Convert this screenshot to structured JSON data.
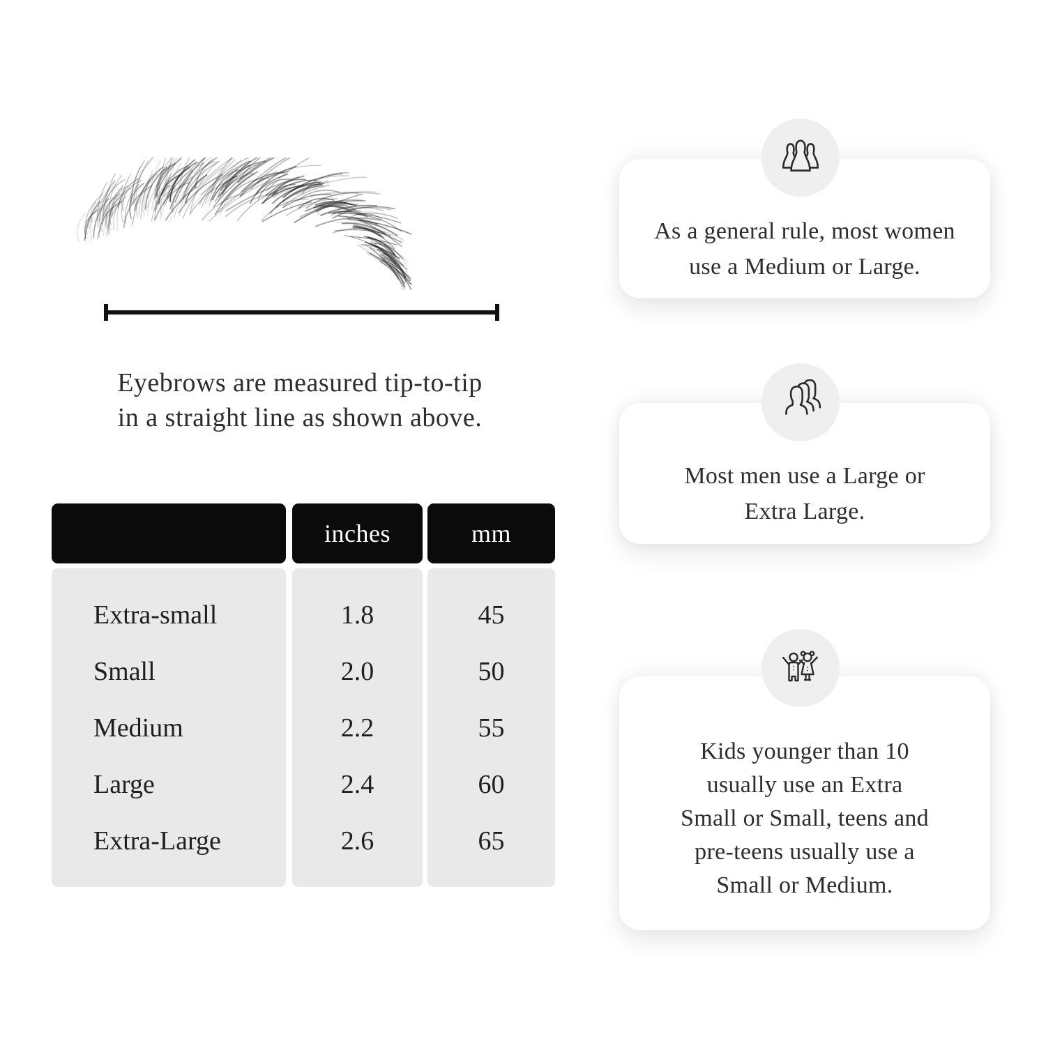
{
  "measure_section": {
    "illustration": "eyebrow-sketch",
    "caption_lines": [
      "Eyebrows are measured tip-to-tip",
      "in a straight line as shown above."
    ]
  },
  "size_table": {
    "headers": [
      "",
      "inches",
      "mm"
    ],
    "rows": [
      {
        "label": "Extra-small",
        "inches": "1.8",
        "mm": "45"
      },
      {
        "label": "Small",
        "inches": "2.0",
        "mm": "50"
      },
      {
        "label": "Medium",
        "inches": "2.2",
        "mm": "55"
      },
      {
        "label": "Large",
        "inches": "2.4",
        "mm": "60"
      },
      {
        "label": "Extra-Large",
        "inches": "2.6",
        "mm": "65"
      }
    ]
  },
  "cards": [
    {
      "icon": "women-group-icon",
      "lines": [
        "As a general rule, most women",
        "use a Medium or Large."
      ]
    },
    {
      "icon": "men-group-icon",
      "lines": [
        "Most men use a Large or",
        "Extra Large."
      ]
    },
    {
      "icon": "kids-icon",
      "lines": [
        "Kids younger than 10",
        "usually use an Extra",
        "Small or Small, teens and",
        "pre-teens usually use a",
        "Small or Medium."
      ]
    }
  ],
  "colors": {
    "page_bg": "#ffffff",
    "table_header_bg": "#0b0b0b",
    "table_header_text": "#ffffff",
    "table_row_bg": "#e9e9e9",
    "body_text": "#2d2d2d",
    "badge_bg": "#efefef",
    "line_color": "#111111"
  }
}
